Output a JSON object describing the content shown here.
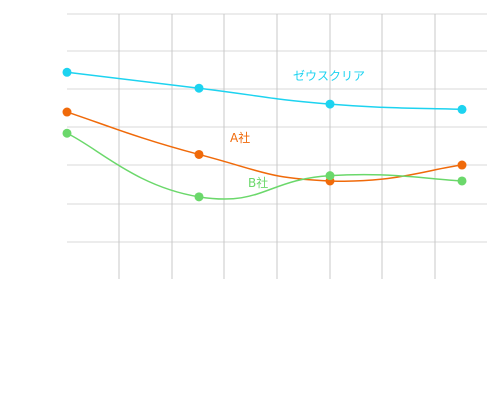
{
  "chart_data": {
    "type": "line",
    "x": [
      0,
      1,
      2,
      3
    ],
    "xlim": [
      0,
      3
    ],
    "ylim": [
      0,
      1
    ],
    "grid": true,
    "series": [
      {
        "name": "ゼウスクリア",
        "color": "#1dd3f0",
        "values": [
          0.78,
          0.72,
          0.66,
          0.64
        ]
      },
      {
        "name": "A社",
        "color": "#f06a0a",
        "values": [
          0.63,
          0.47,
          0.37,
          0.43
        ]
      },
      {
        "name": "B社",
        "color": "#6bd86b",
        "values": [
          0.55,
          0.31,
          0.39,
          0.37
        ]
      }
    ]
  }
}
